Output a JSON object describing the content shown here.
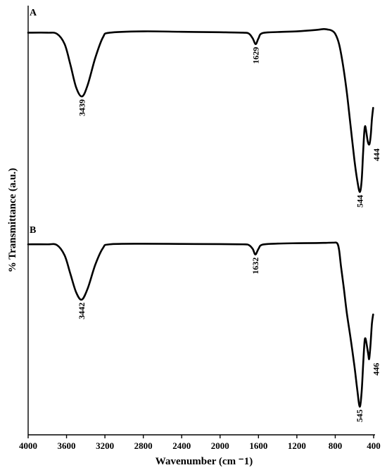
{
  "chart_data": {
    "type": "line",
    "xlabel": "Wavenumber (cm ⁻1)",
    "ylabel": "% Transmittance (a.u.)",
    "xlim": [
      4000,
      400
    ],
    "x_reversed": true,
    "x_ticks": [
      4000,
      3600,
      3200,
      2800,
      2400,
      2000,
      1600,
      1200,
      800,
      400
    ],
    "y_ticks_shown": false,
    "grid": false,
    "series": [
      {
        "name": "A",
        "peaks": [
          {
            "label": "3439",
            "x": 3439
          },
          {
            "label": "1629",
            "x": 1629
          },
          {
            "label": "544",
            "x": 544
          },
          {
            "label": "444",
            "x": 444
          }
        ],
        "points": [
          [
            4000,
            98
          ],
          [
            3800,
            98
          ],
          [
            3700,
            97.5
          ],
          [
            3620,
            93
          ],
          [
            3560,
            84
          ],
          [
            3500,
            74
          ],
          [
            3439,
            70
          ],
          [
            3380,
            75
          ],
          [
            3300,
            87
          ],
          [
            3220,
            96
          ],
          [
            3150,
            98
          ],
          [
            2800,
            98.6
          ],
          [
            2400,
            98.4
          ],
          [
            2000,
            98.2
          ],
          [
            1760,
            98
          ],
          [
            1700,
            97.6
          ],
          [
            1660,
            95.5
          ],
          [
            1629,
            93
          ],
          [
            1600,
            95.5
          ],
          [
            1560,
            97.8
          ],
          [
            1400,
            98.3
          ],
          [
            1200,
            98.6
          ],
          [
            1000,
            99.2
          ],
          [
            920,
            99.6
          ],
          [
            880,
            99.4
          ],
          [
            840,
            99
          ],
          [
            800,
            97.5
          ],
          [
            760,
            93
          ],
          [
            720,
            84
          ],
          [
            680,
            72
          ],
          [
            640,
            57
          ],
          [
            600,
            42
          ],
          [
            570,
            33
          ],
          [
            544,
            28
          ],
          [
            525,
            33
          ],
          [
            510,
            45
          ],
          [
            498,
            54
          ],
          [
            488,
            57
          ],
          [
            475,
            54
          ],
          [
            460,
            50
          ],
          [
            444,
            49
          ],
          [
            430,
            53
          ],
          [
            418,
            60
          ],
          [
            405,
            65
          ]
        ]
      },
      {
        "name": "B",
        "peaks": [
          {
            "label": "3442",
            "x": 3442
          },
          {
            "label": "1632",
            "x": 1632
          },
          {
            "label": "545",
            "x": 545
          },
          {
            "label": "446",
            "x": 446
          }
        ],
        "points": [
          [
            4000,
            98
          ],
          [
            3800,
            98
          ],
          [
            3700,
            97.6
          ],
          [
            3620,
            92
          ],
          [
            3560,
            82
          ],
          [
            3500,
            72
          ],
          [
            3442,
            68
          ],
          [
            3380,
            74
          ],
          [
            3300,
            87
          ],
          [
            3220,
            96
          ],
          [
            3150,
            98
          ],
          [
            2800,
            98.3
          ],
          [
            2400,
            98.2
          ],
          [
            2000,
            98.1
          ],
          [
            1760,
            98
          ],
          [
            1700,
            97.6
          ],
          [
            1660,
            95.5
          ],
          [
            1632,
            92.5
          ],
          [
            1600,
            95.5
          ],
          [
            1560,
            97.8
          ],
          [
            1400,
            98.4
          ],
          [
            1200,
            98.6
          ],
          [
            1000,
            98.7
          ],
          [
            900,
            98.8
          ],
          [
            820,
            98.9
          ],
          [
            780,
            98.6
          ],
          [
            760,
            95
          ],
          [
            740,
            86
          ],
          [
            710,
            74
          ],
          [
            680,
            61
          ],
          [
            640,
            47
          ],
          [
            600,
            32
          ],
          [
            570,
            19
          ],
          [
            545,
            10
          ],
          [
            525,
            18
          ],
          [
            508,
            34
          ],
          [
            495,
            45
          ],
          [
            485,
            47
          ],
          [
            470,
            43
          ],
          [
            455,
            38
          ],
          [
            446,
            36
          ],
          [
            432,
            44
          ],
          [
            418,
            55
          ],
          [
            405,
            60
          ]
        ]
      }
    ]
  }
}
